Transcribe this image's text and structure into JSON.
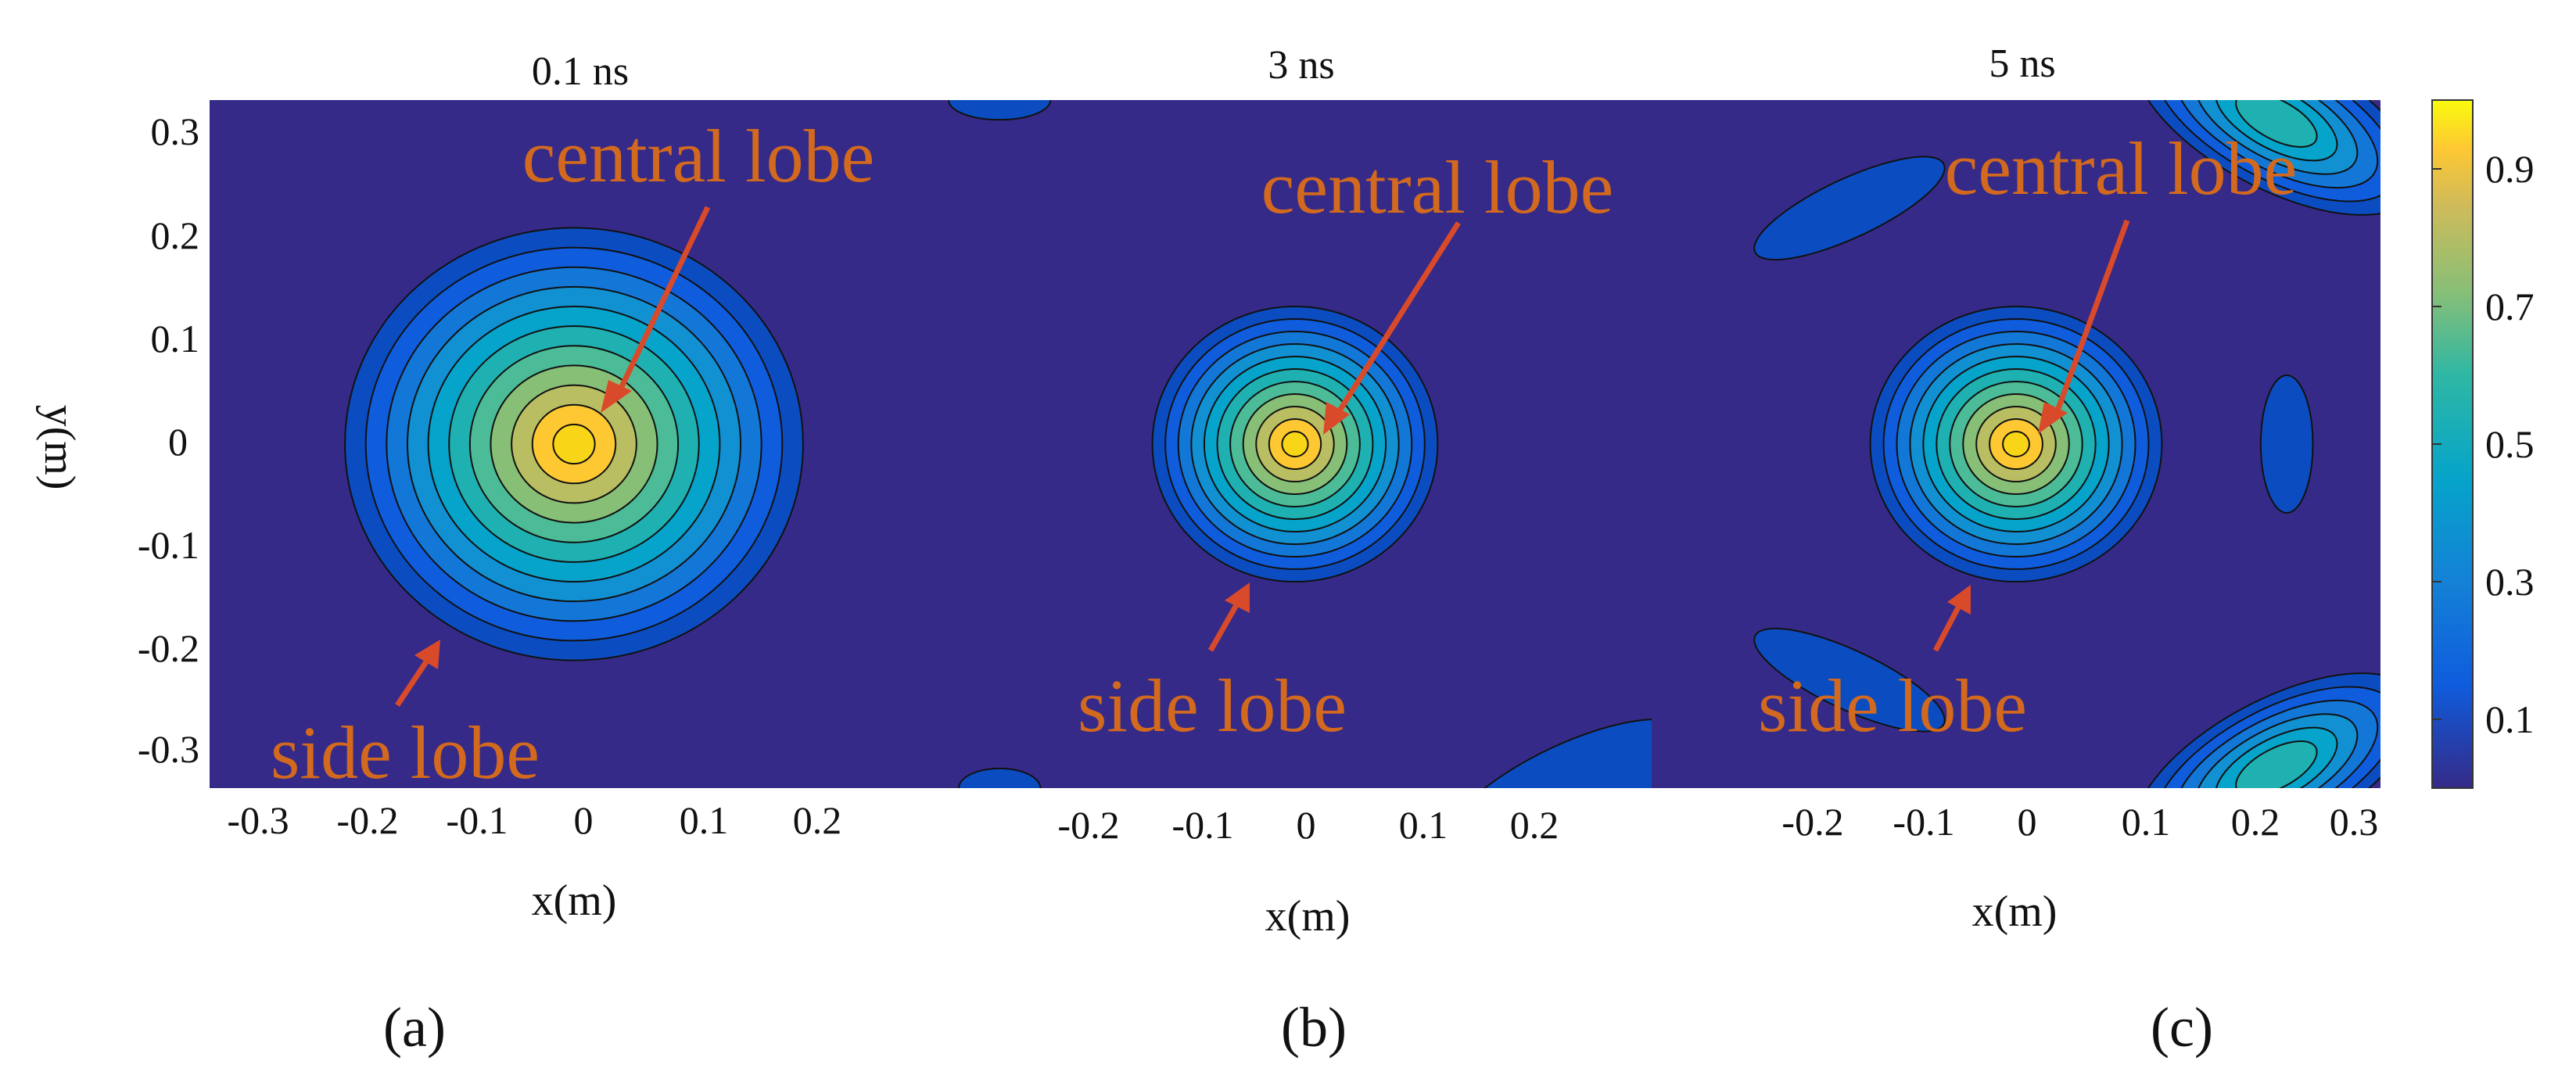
{
  "figure": {
    "panels": [
      {
        "title": "0.1 ns",
        "xlabel": "x(m)",
        "ylabel": "y(m)",
        "sublabel": "(a)",
        "annotations": {
          "central": "central lobe",
          "side": "side lobe"
        }
      },
      {
        "title": "3 ns",
        "xlabel": "x(m)",
        "ylabel": "",
        "sublabel": "(b)",
        "annotations": {
          "central": "central lobe",
          "side": "side lobe"
        }
      },
      {
        "title": "5 ns",
        "xlabel": "x(m)",
        "ylabel": "",
        "sublabel": "(c)",
        "annotations": {
          "central": "central lobe",
          "side": "side lobe"
        }
      }
    ],
    "colorbar": {
      "ticks": [
        "0.9",
        "0.7",
        "0.5",
        "0.3",
        "0.1"
      ]
    },
    "colors": {
      "annotation": "#D2691E",
      "arrow": "#D94A2A",
      "background_low": "#352A87",
      "high": "#F9E314"
    }
  },
  "chart_data": [
    {
      "type": "heatmap",
      "title": "0.1 ns",
      "xlabel": "x(m)",
      "ylabel": "y(m)",
      "xlim": [
        -0.35,
        0.35
      ],
      "ylim": [
        -0.35,
        0.35
      ],
      "x_ticks": [
        "-0.3",
        "-0.2",
        "-0.1",
        "0",
        "0.1",
        "0.2"
      ],
      "y_ticks": [
        "0.3",
        "0.2",
        "0.1",
        "0",
        "-0.1",
        "-0.2",
        "-0.3"
      ],
      "main_lobe": {
        "cx": 0.0,
        "cy": 0.0,
        "radius": 0.22
      },
      "side_lobes": [],
      "annotations": [
        "central lobe",
        "side lobe"
      ]
    },
    {
      "type": "heatmap",
      "title": "3 ns",
      "xlabel": "x(m)",
      "ylabel": "",
      "xlim": [
        -0.35,
        0.35
      ],
      "ylim": [
        -0.35,
        0.35
      ],
      "x_ticks": [
        "-0.2",
        "-0.1",
        "0",
        "0.1",
        "0.2"
      ],
      "y_ticks": [],
      "main_lobe": {
        "cx": 0.0,
        "cy": 0.0,
        "radius": 0.14
      },
      "side_lobes": [
        {
          "cx": -0.29,
          "cy": 0.35,
          "rx": 0.05,
          "ry": 0.02,
          "levels": 1
        },
        {
          "cx": -0.29,
          "cy": -0.35,
          "rx": 0.04,
          "ry": 0.02,
          "levels": 1
        },
        {
          "cx": 0.27,
          "cy": -0.35,
          "rx": 0.13,
          "ry": 0.045,
          "levels": 1,
          "rotate": -25
        }
      ],
      "annotations": [
        "central lobe",
        "side lobe"
      ]
    },
    {
      "type": "heatmap",
      "title": "5 ns",
      "xlabel": "x(m)",
      "ylabel": "",
      "xlim": [
        -0.35,
        0.35
      ],
      "ylim": [
        -0.35,
        0.35
      ],
      "x_ticks": [
        "-0.2",
        "-0.1",
        "0",
        "0.1",
        "0.2",
        "0.3"
      ],
      "y_ticks": [],
      "main_lobe": {
        "cx": 0.0,
        "cy": 0.0,
        "radius": 0.14
      },
      "side_lobes": [
        {
          "cx": -0.16,
          "cy": 0.24,
          "rx": 0.1,
          "ry": 0.03,
          "levels": 1,
          "rotate": -25
        },
        {
          "cx": 0.26,
          "cy": 0.0,
          "rx": 0.025,
          "ry": 0.07,
          "levels": 1
        },
        {
          "cx": -0.16,
          "cy": -0.24,
          "rx": 0.1,
          "ry": 0.03,
          "levels": 1,
          "rotate": 25
        },
        {
          "cx": 0.25,
          "cy": 0.33,
          "rx": 0.15,
          "ry": 0.07,
          "levels": 6,
          "rotate": 28
        },
        {
          "cx": 0.25,
          "cy": -0.33,
          "rx": 0.15,
          "ry": 0.07,
          "levels": 6,
          "rotate": -28
        }
      ],
      "annotations": [
        "central lobe",
        "side lobe"
      ]
    }
  ]
}
